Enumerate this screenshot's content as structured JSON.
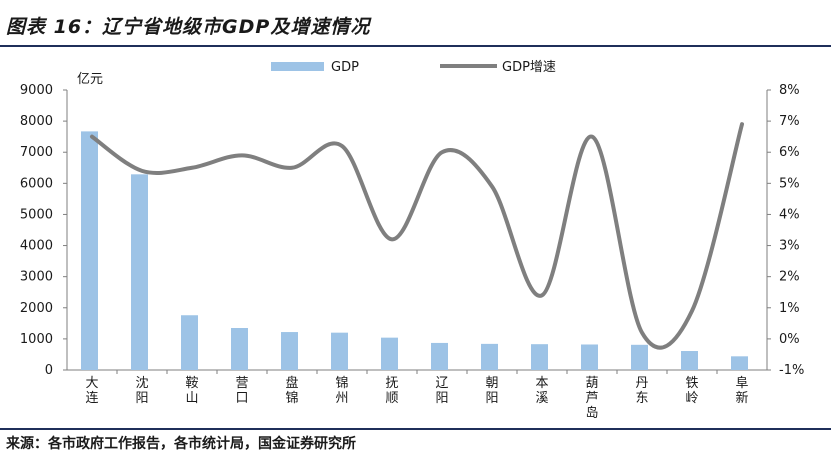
{
  "figure": {
    "caption": "图表 16：辽宁省地级市GDP及增速情况",
    "source": "来源：各市政府工作报告，各市统计局，国金证券研究所"
  },
  "chart_data": {
    "type": "bar+line",
    "categories": [
      "大连",
      "沈阳",
      "鞍山",
      "营口",
      "盘锦",
      "锦州",
      "抚顺",
      "辽阳",
      "朝阳",
      "本溪",
      "葫芦岛",
      "丹东",
      "铁岭",
      "阜新"
    ],
    "series": [
      {
        "name": "GDP",
        "type": "bar",
        "axis": "left",
        "color": "#9dc3e6",
        "values": [
          7670,
          6290,
          1760,
          1350,
          1220,
          1200,
          1040,
          870,
          840,
          830,
          820,
          810,
          610,
          440
        ]
      },
      {
        "name": "GDP增速",
        "type": "line",
        "axis": "right",
        "color": "#7f7f7f",
        "values": [
          6.5,
          5.4,
          5.5,
          5.9,
          5.5,
          6.2,
          3.2,
          6.0,
          4.9,
          1.4,
          6.5,
          0.2,
          0.9,
          6.9
        ]
      }
    ],
    "left_axis": {
      "unit": "亿元",
      "ylim": [
        0,
        9000
      ],
      "ticks": [
        "0",
        "1000",
        "2000",
        "3000",
        "4000",
        "5000",
        "6000",
        "7000",
        "8000",
        "9000"
      ]
    },
    "right_axis": {
      "ylim": [
        -1,
        8
      ],
      "ticks": [
        "-1%",
        "0%",
        "1%",
        "2%",
        "3%",
        "4%",
        "5%",
        "6%",
        "7%",
        "8%"
      ]
    },
    "legend": {
      "placement": "top-center",
      "labels": [
        "GDP",
        "GDP增速"
      ]
    },
    "grid": false
  }
}
